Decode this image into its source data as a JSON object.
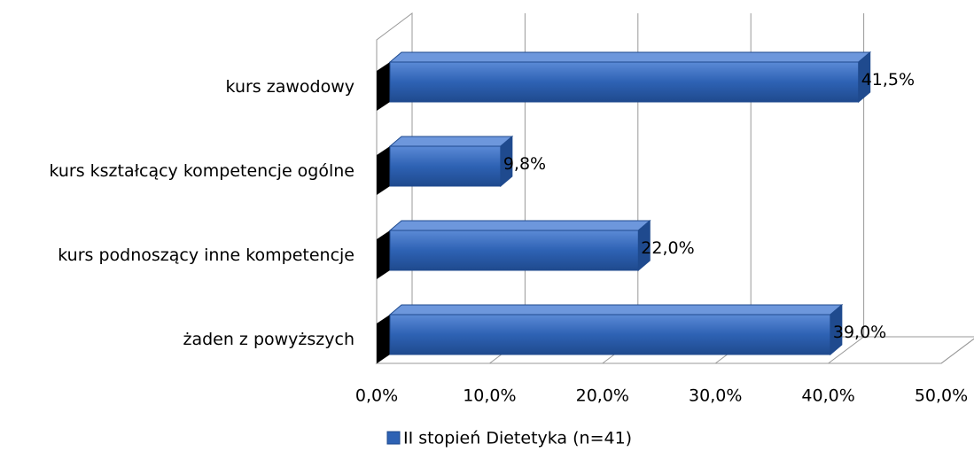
{
  "chart_data": {
    "type": "bar3d",
    "categories": [
      "kurs zawodowy",
      "kurs kształcący kompetencje ogólne",
      "kurs podnoszący inne kompetencje",
      "żaden z powyższych"
    ],
    "series": [
      {
        "name": "II stopień Dietetyka (n=41)",
        "color": "#2e62b4",
        "values": [
          41.5,
          9.8,
          22.0,
          39.0
        ],
        "value_labels": [
          "41,5%",
          "9,8%",
          "22,0%",
          "39,0%"
        ]
      }
    ],
    "xlim": [
      0,
      50
    ],
    "xticks": [
      {
        "value": 0,
        "label": "0,0%"
      },
      {
        "value": 10,
        "label": "10,0%"
      },
      {
        "value": 20,
        "label": "20,0%"
      },
      {
        "value": 30,
        "label": "30,0%"
      },
      {
        "value": 40,
        "label": "40,0%"
      },
      {
        "value": 50,
        "label": "50,0%"
      }
    ],
    "grid": true,
    "legend": "bottom"
  }
}
